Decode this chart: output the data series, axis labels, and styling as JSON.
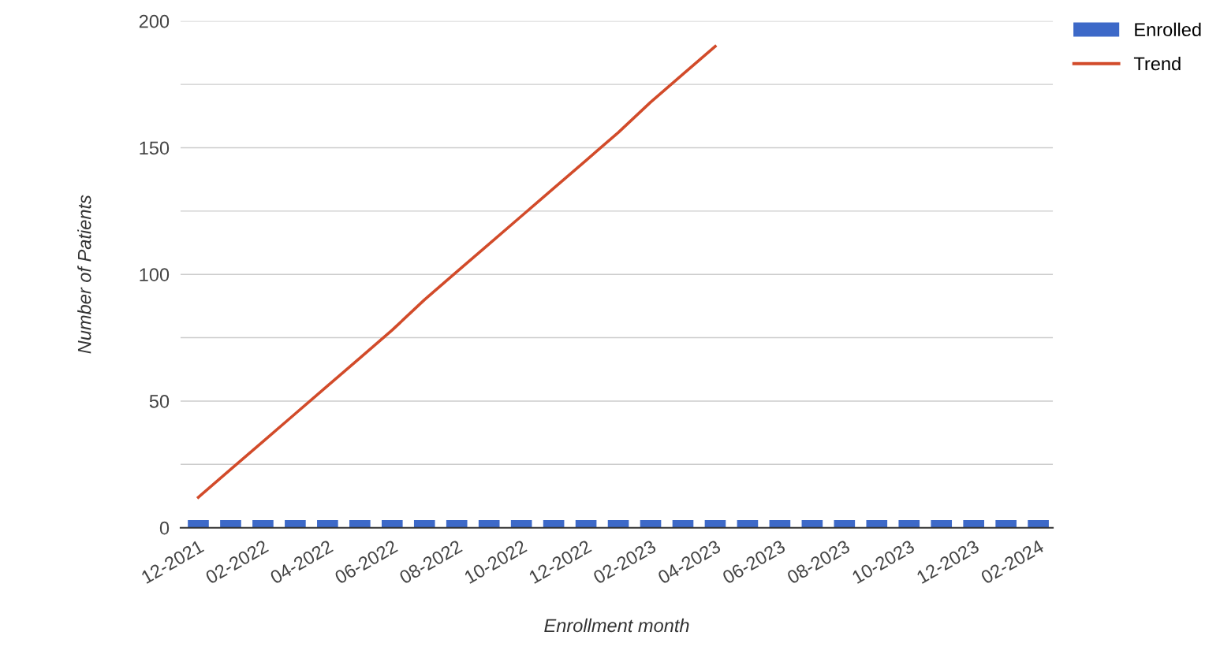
{
  "chart_data": {
    "type": "bar",
    "xlabel": "Enrollment month",
    "ylabel": "Number of Patients",
    "categories": [
      "12-2021",
      null,
      "02-2022",
      null,
      "04-2022",
      null,
      "06-2022",
      null,
      "08-2022",
      null,
      "10-2022",
      null,
      "12-2022",
      null,
      "02-2023",
      null,
      "04-2023",
      null,
      "06-2023",
      null,
      "08-2023",
      null,
      "10-2023",
      null,
      "12-2023",
      null,
      "02-2024"
    ],
    "series": [
      {
        "name": "Enrolled",
        "color": "#3d69c8",
        "values": [
          3,
          3,
          3,
          3,
          3,
          3,
          3,
          3,
          3,
          3,
          3,
          3,
          3,
          3,
          3,
          3,
          3,
          3,
          3,
          3,
          3,
          3,
          3,
          3,
          3,
          3,
          3
        ]
      },
      {
        "name": "Trend",
        "type": "line",
        "color": "#d24b2a",
        "values": [
          12,
          23,
          34,
          45,
          56,
          67,
          78,
          90,
          101,
          112,
          123,
          134,
          145,
          156,
          168,
          179,
          190,
          null,
          null,
          null,
          null,
          null,
          null,
          null,
          null,
          null,
          null
        ]
      }
    ],
    "ylim": [
      0,
      200
    ],
    "yticks": [
      0,
      {
        "value": 25,
        "label": null
      },
      50,
      {
        "value": 75,
        "label": null
      },
      100,
      {
        "value": 125,
        "label": null
      },
      150,
      {
        "value": 175,
        "label": null
      },
      200
    ],
    "grid": "y",
    "legend": "top right"
  }
}
